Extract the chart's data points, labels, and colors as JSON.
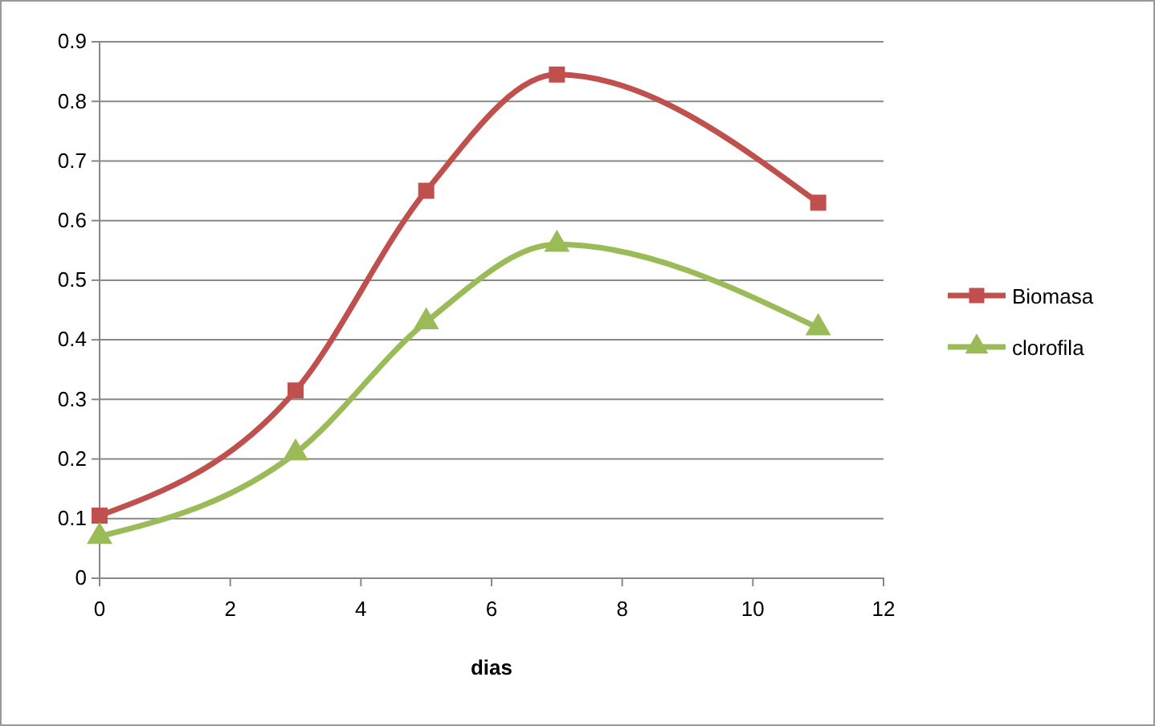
{
  "chart_data": {
    "type": "line",
    "xlabel": "dias",
    "xlim": [
      0,
      12
    ],
    "xticks": [
      0,
      2,
      4,
      6,
      8,
      10,
      12
    ],
    "ylim": [
      0,
      0.9
    ],
    "yticks": [
      0,
      0.1,
      0.2,
      0.3,
      0.4,
      0.5,
      0.6,
      0.7,
      0.8,
      0.9
    ],
    "grid": "y",
    "legend": "right",
    "line_style": "solid",
    "series": [
      {
        "name": "Biomasa",
        "color": "#c0504d",
        "marker": "square",
        "x": [
          0,
          3,
          5,
          7,
          11
        ],
        "values": [
          0.105,
          0.315,
          0.65,
          0.845,
          0.63
        ]
      },
      {
        "name": "clorofila",
        "color": "#9bbb59",
        "marker": "triangle",
        "x": [
          0,
          3,
          5,
          7,
          11
        ],
        "values": [
          0.07,
          0.21,
          0.43,
          0.56,
          0.42
        ]
      }
    ]
  }
}
